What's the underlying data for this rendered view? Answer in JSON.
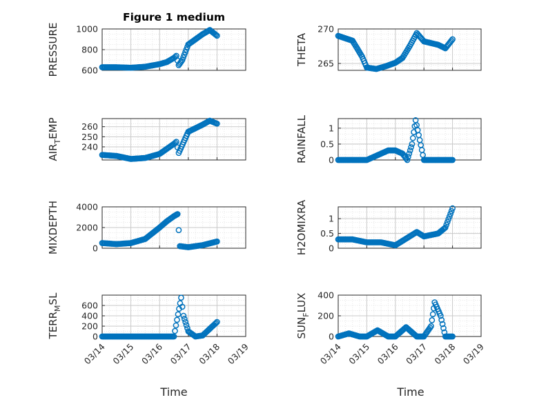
{
  "figure": {
    "title": "Figure 1 medium",
    "xlabel": "Time",
    "date_ticks": [
      "03/14",
      "03/15",
      "03/16",
      "03/17",
      "03/18",
      "03/19"
    ]
  },
  "colors": {
    "marker": "#0072BD",
    "axis": "#262626",
    "grid": "#c8c8c8",
    "background": "#ffffff"
  },
  "chart_data": [
    {
      "type": "scatter",
      "ylabel": "PRESSURE",
      "ylim": [
        600,
        1000
      ],
      "yticks": [
        "600",
        "800",
        "1000"
      ],
      "xlim": [
        "03/14",
        "03/19"
      ],
      "grid": true,
      "x": [
        "03/14 00:00",
        "03/14 12:00",
        "03/15 00:00",
        "03/15 12:00",
        "03/16 00:00",
        "03/16 06:00",
        "03/16 12:00",
        "03/16 14:00",
        "03/16 16:00",
        "03/16 19:00",
        "03/17 00:00",
        "03/17 12:00",
        "03/17 18:00",
        "03/18 00:00"
      ],
      "y": [
        630,
        630,
        625,
        635,
        660,
        680,
        720,
        740,
        650,
        700,
        850,
        950,
        990,
        935
      ]
    },
    {
      "type": "scatter",
      "ylabel": "THETA",
      "ylim": [
        264,
        270
      ],
      "yticks": [
        "265",
        "270"
      ],
      "xlim": [
        "03/14",
        "03/19"
      ],
      "grid": true,
      "x": [
        "03/14 00:00",
        "03/14 12:00",
        "03/14 20:00",
        "03/15 00:00",
        "03/15 08:00",
        "03/15 16:00",
        "03/16 00:00",
        "03/16 06:00",
        "03/16 12:00",
        "03/16 18:00",
        "03/17 00:00",
        "03/17 12:00",
        "03/17 18:00",
        "03/18 00:00"
      ],
      "y": [
        269,
        268.3,
        266,
        264.4,
        264.2,
        264.6,
        265.1,
        265.8,
        267.5,
        269.4,
        268.2,
        267.7,
        267.2,
        268.5
      ]
    },
    {
      "type": "scatter",
      "ylabel": "AIR_TEMP",
      "ylim": [
        227,
        268
      ],
      "yticks": [
        "240",
        "250",
        "260"
      ],
      "xlim": [
        "03/14",
        "03/19"
      ],
      "grid": true,
      "x": [
        "03/14 00:00",
        "03/14 12:00",
        "03/15 00:00",
        "03/15 12:00",
        "03/16 00:00",
        "03/16 12:00",
        "03/16 14:00",
        "03/16 16:00",
        "03/17 00:00",
        "03/17 12:00",
        "03/17 18:00",
        "03/18 00:00"
      ],
      "y": [
        232,
        231,
        228,
        229,
        233,
        243,
        245,
        234,
        255,
        262,
        266,
        263
      ]
    },
    {
      "type": "scatter",
      "ylabel": "RAINFALL",
      "ylim": [
        0,
        1.3
      ],
      "yticks": [
        "0",
        "0.5",
        "1"
      ],
      "xlim": [
        "03/14",
        "03/19"
      ],
      "grid": true,
      "x": [
        "03/14 00:00",
        "03/14 12:00",
        "03/15 00:00",
        "03/15 18:00",
        "03/16 00:00",
        "03/16 06:00",
        "03/16 10:00",
        "03/16 14:00",
        "03/16 17:00",
        "03/17 00:00",
        "03/17 12:00",
        "03/18 00:00"
      ],
      "y": [
        0,
        0,
        0,
        0.3,
        0.3,
        0.2,
        0,
        0.5,
        1.25,
        0,
        0,
        0
      ]
    },
    {
      "type": "scatter",
      "ylabel": "MIXDEPTH",
      "ylim": [
        0,
        4000
      ],
      "yticks": [
        "0",
        "2000",
        "4000"
      ],
      "xlim": [
        "03/14",
        "03/19"
      ],
      "grid": true,
      "x": [
        "03/14 00:00",
        "03/14 12:00",
        "03/15 00:00",
        "03/15 12:00",
        "03/16 00:00",
        "03/16 06:00",
        "03/16 12:00",
        "03/16 15:00",
        "03/16 17:00",
        "03/17 00:00",
        "03/17 12:00",
        "03/18 00:00"
      ],
      "y": [
        500,
        400,
        500,
        900,
        2000,
        2600,
        3100,
        3300,
        200,
        100,
        300,
        650
      ]
    },
    {
      "type": "scatter",
      "ylabel": "H2OMIXRA",
      "ylim": [
        0,
        1.4
      ],
      "yticks": [
        "0",
        "0.5",
        "1"
      ],
      "xlim": [
        "03/14",
        "03/19"
      ],
      "grid": true,
      "x": [
        "03/14 00:00",
        "03/14 12:00",
        "03/15 00:00",
        "03/15 12:00",
        "03/16 00:00",
        "03/16 12:00",
        "03/16 18:00",
        "03/17 00:00",
        "03/17 12:00",
        "03/17 18:00",
        "03/18 00:00"
      ],
      "y": [
        0.3,
        0.3,
        0.2,
        0.2,
        0.1,
        0.4,
        0.55,
        0.4,
        0.5,
        0.7,
        1.35
      ]
    },
    {
      "type": "scatter",
      "ylabel": "TERR_MSL",
      "ylim": [
        0,
        800
      ],
      "yticks": [
        "0",
        "200",
        "400",
        "600"
      ],
      "xlim": [
        "03/14",
        "03/19"
      ],
      "grid": true,
      "x": [
        "03/14 00:00",
        "03/15 00:00",
        "03/16 00:00",
        "03/16 12:00",
        "03/16 18:00",
        "03/16 20:00",
        "03/17 00:00",
        "03/17 06:00",
        "03/17 12:00",
        "03/18 00:00"
      ],
      "y": [
        0,
        0,
        0,
        0,
        750,
        400,
        100,
        0,
        20,
        280
      ]
    },
    {
      "type": "scatter",
      "ylabel": "SUN_FLUX",
      "ylim": [
        0,
        400
      ],
      "yticks": [
        "0",
        "200",
        "400"
      ],
      "xlim": [
        "03/14",
        "03/19"
      ],
      "grid": true,
      "x": [
        "03/14 00:00",
        "03/14 09:00",
        "03/14 18:00",
        "03/15 00:00",
        "03/15 09:00",
        "03/15 18:00",
        "03/16 00:00",
        "03/16 09:00",
        "03/16 18:00",
        "03/17 00:00",
        "03/17 06:00",
        "03/17 09:00",
        "03/17 14:00",
        "03/17 18:00",
        "03/18 00:00"
      ],
      "y": [
        0,
        30,
        0,
        0,
        60,
        0,
        0,
        90,
        0,
        0,
        100,
        330,
        200,
        0,
        0
      ]
    }
  ]
}
